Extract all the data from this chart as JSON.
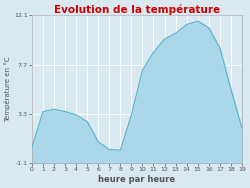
{
  "title": "Evolution de la température",
  "xlabel": "heure par heure",
  "ylabel": "Température en °C",
  "background_color": "#dae8f0",
  "plot_bg_color": "#dae8f0",
  "fill_color": "#aad8ea",
  "line_color": "#55b0cc",
  "title_color": "#cc0000",
  "grid_color": "#ffffff",
  "tick_color": "#555555",
  "ylim": [
    -1.1,
    12.1
  ],
  "xlim": [
    0,
    19
  ],
  "yticks": [
    -1.1,
    3.3,
    7.7,
    12.1
  ],
  "ytick_labels": [
    "-1.1",
    "3.3",
    "7.7",
    "12.1"
  ],
  "hours": [
    0,
    1,
    2,
    3,
    4,
    5,
    6,
    7,
    8,
    9,
    10,
    11,
    12,
    13,
    14,
    15,
    16,
    17,
    18,
    19
  ],
  "temperatures": [
    0.3,
    3.5,
    3.7,
    3.5,
    3.2,
    2.6,
    0.8,
    0.1,
    0.05,
    3.2,
    7.2,
    8.8,
    10.0,
    10.5,
    11.3,
    11.6,
    11.0,
    9.2,
    5.5,
    2.0
  ],
  "title_fontsize": 7.5,
  "label_fontsize": 5.0,
  "tick_fontsize": 4.5,
  "xlabel_fontsize": 6.0
}
